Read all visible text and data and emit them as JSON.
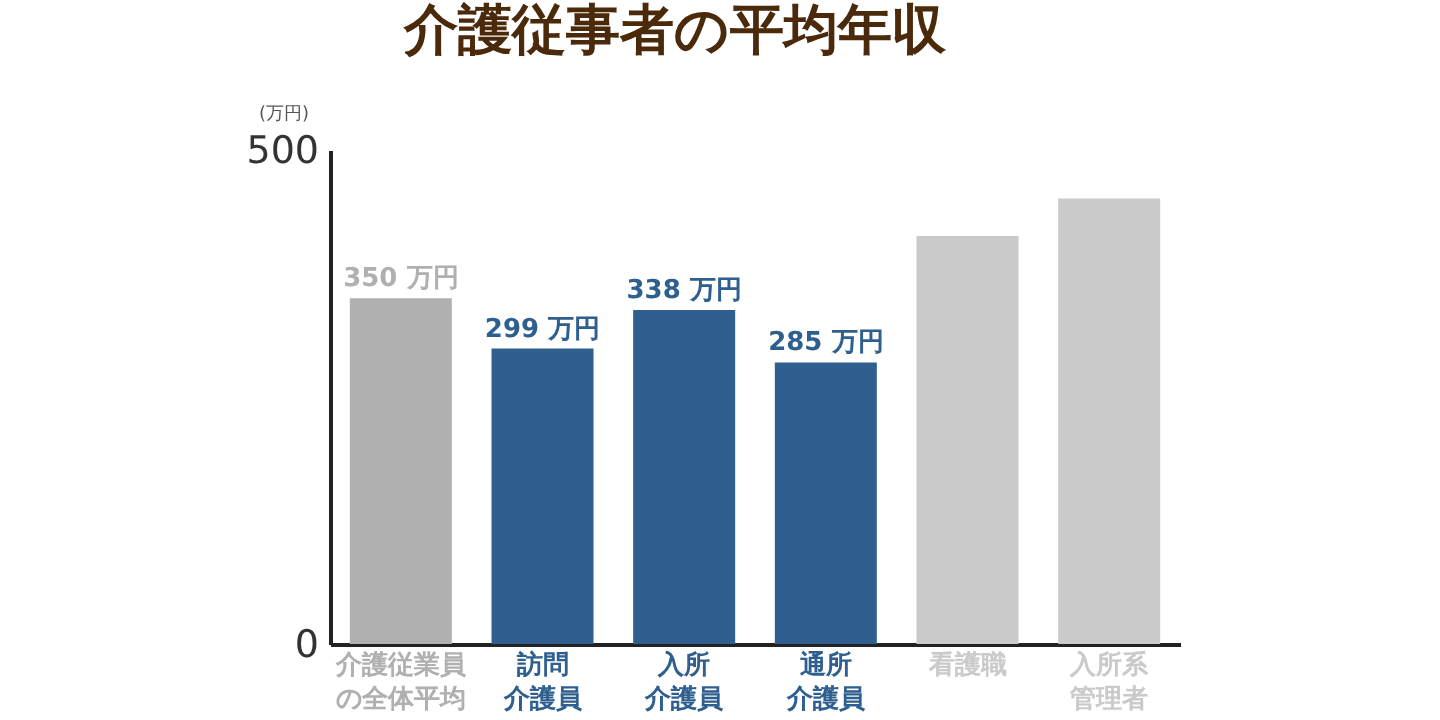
{
  "chart_data": {
    "type": "bar",
    "title": "介護従事者の平均年収",
    "ylabel": "(万円)",
    "categories": [
      "介護従業員の全体平均",
      "訪問介護員",
      "入所介護員",
      "通所介護員",
      "看護職",
      "入所系管理者"
    ],
    "values": [
      350,
      299,
      338,
      285,
      413,
      451
    ],
    "colors": [
      "#b0b0b0",
      "#2e5f8f",
      "#2e5f8f",
      "#2e5f8f",
      "#cacaca",
      "#cacaca"
    ],
    "value_labels": [
      "350 万円",
      "299 万円",
      "338 万円",
      "285 万円",
      null,
      null
    ],
    "ylim": [
      0,
      500
    ],
    "yticks": [
      0,
      500
    ],
    "grid": false
  }
}
